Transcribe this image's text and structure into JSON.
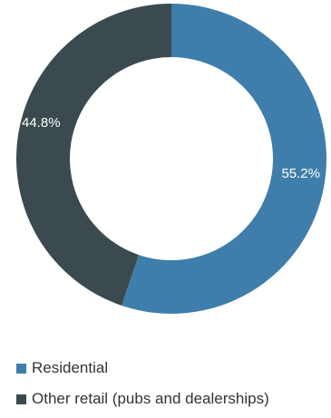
{
  "chart_data": {
    "type": "pie",
    "donut": true,
    "labels": [
      "Residential",
      "Other retail (pubs and dealerships)"
    ],
    "values": [
      55.2,
      44.8
    ],
    "value_labels": [
      "55.2%",
      "44.8%"
    ],
    "colors": [
      "#3f7eaa",
      "#3b4a4e"
    ],
    "legend_position": "bottom-left",
    "title": ""
  },
  "legend": {
    "items": [
      {
        "label": "Residential",
        "color": "#3f7eaa"
      },
      {
        "label": "Other retail (pubs and dealerships)",
        "color": "#3b4a4e"
      }
    ]
  }
}
